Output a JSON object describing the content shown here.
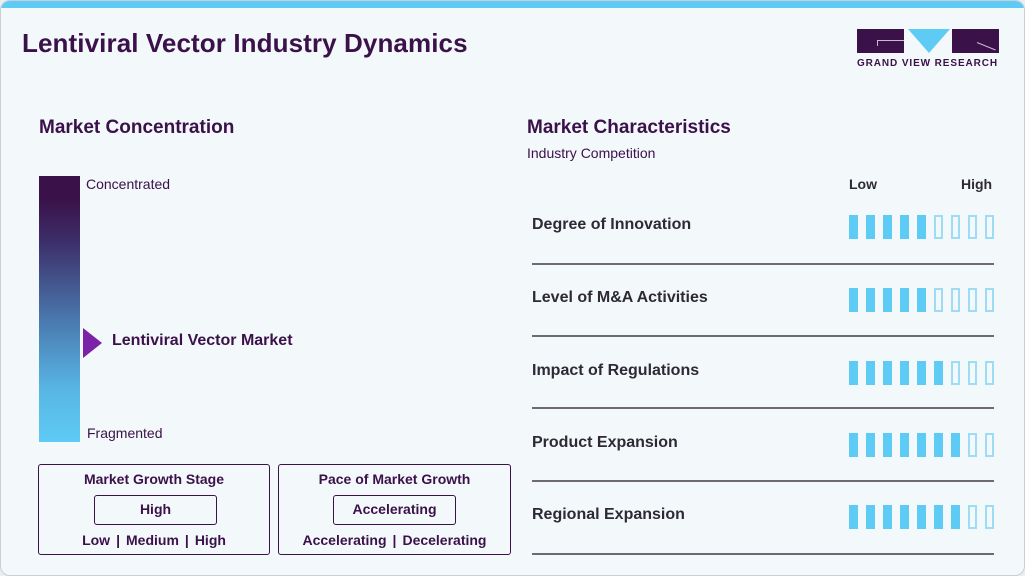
{
  "header": {
    "title": "Lentiviral Vector Industry Dynamics",
    "logo_text": "GRAND VIEW RESEARCH"
  },
  "colors": {
    "primary": "#3a1148",
    "accent": "#5ecbf5",
    "marker": "#7a22a8",
    "background": "#f3f8fb"
  },
  "concentration": {
    "title": "Market Concentration",
    "top_label": "Concentrated",
    "bottom_label": "Fragmented",
    "marker_label": "Lentiviral Vector Market",
    "marker_position_pct": 63
  },
  "growth_stage": {
    "title": "Market Growth Stage",
    "value": "High",
    "options": [
      "Low",
      "Medium",
      "High"
    ]
  },
  "growth_pace": {
    "title": "Pace of Market Growth",
    "value": "Accelerating",
    "options": [
      "Accelerating",
      "Decelerating"
    ]
  },
  "characteristics": {
    "title": "Market Characteristics",
    "subtitle": "Industry Competition",
    "scale_low": "Low",
    "scale_high": "High",
    "total_segments": 9,
    "rows": [
      {
        "label": "Degree of Innovation",
        "filled": 5
      },
      {
        "label": "Level of M&A Activities",
        "filled": 5
      },
      {
        "label": "Impact of Regulations",
        "filled": 6
      },
      {
        "label": "Product Expansion",
        "filled": 7
      },
      {
        "label": "Regional Expansion",
        "filled": 7
      }
    ]
  }
}
